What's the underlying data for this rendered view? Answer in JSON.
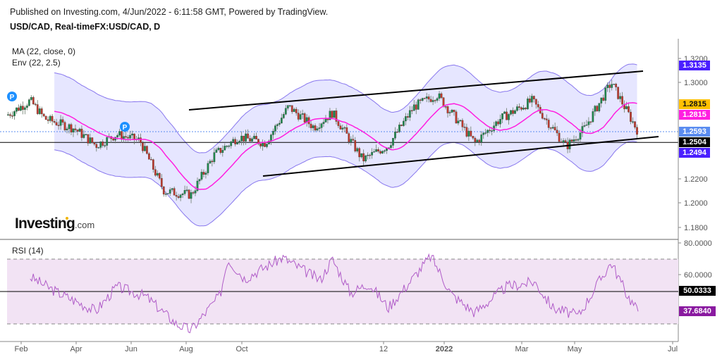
{
  "header": {
    "published": "Published on Investing.com, 4/Jun/2022 - 6:11:58 GMT, Powered by TradingView.",
    "symbol": "USD/CAD, Real-timeFX:USD/CAD, D"
  },
  "legend": {
    "ma": "MA (22, close, 0)",
    "env": "Env (22, 2.5)",
    "rsi": "RSI (14)"
  },
  "logo": {
    "main": "Investing",
    "suffix": ".com"
  },
  "price_axis": {
    "ticks": [
      "1.3200",
      "1.3000",
      "1.2200",
      "1.2000",
      "1.1800"
    ],
    "badges": [
      {
        "label": "1.3135",
        "color": "#4a1fff",
        "text": "#ffffff"
      },
      {
        "label": "1.2815",
        "color": "#ffc000",
        "text": "#111111"
      },
      {
        "label": "1.2815",
        "color": "#ff1fe0",
        "text": "#ffffff"
      },
      {
        "label": "1.2593",
        "color": "#5b8cf0",
        "text": "#ffffff"
      },
      {
        "label": "1.2504",
        "color": "#000000",
        "text": "#ffffff"
      },
      {
        "label": "1.2494",
        "color": "#4a1fff",
        "text": "#ffffff"
      }
    ]
  },
  "rsi_axis": {
    "ticks": [
      "80.0000",
      "60.0000"
    ],
    "badges": [
      {
        "label": "50.0333",
        "color": "#000000",
        "text": "#ffffff"
      },
      {
        "label": "37.6840",
        "color": "#8a1aa0",
        "text": "#ffffff"
      }
    ]
  },
  "time_axis": {
    "labels": [
      "Feb",
      "Apr",
      "Jun",
      "Aug",
      "Oct",
      "12",
      "2022",
      "Mar",
      "May",
      "Jul"
    ]
  },
  "markers": [
    {
      "label": "P"
    },
    {
      "label": "P"
    }
  ],
  "colors": {
    "up": "#1e8a4c",
    "down": "#c0392b",
    "ma": "#ff1fe0",
    "env_line": "#8877ee",
    "env_fill": "#e6e6ff",
    "rsi_line": "#b05cc8",
    "rsi_fill": "#f2e3f4",
    "last_price": "#5b8cf0"
  },
  "chart_data": [
    {
      "type": "candlestick",
      "title": "USD/CAD, Real-timeFX:USD/CAD, D",
      "indicators": [
        "MA (22, close, 0)",
        "Env (22, 2.5)"
      ],
      "x_tick_labels": [
        "Feb",
        "Apr",
        "Jun",
        "Aug",
        "Oct",
        "12",
        "2022",
        "Mar",
        "May",
        "Jul"
      ],
      "y_tick_labels": [
        "1.1800",
        "1.2000",
        "1.2200",
        "1.3000",
        "1.3200"
      ],
      "ylim": [
        1.17,
        1.33
      ],
      "last_close": 1.2593,
      "ma_last": 1.2815,
      "envelope_upper_last": 1.3135,
      "envelope_lower_last": 1.2494,
      "horizontal_line": 1.2504,
      "approx_close_path": [
        {
          "date": "2021-01",
          "close": 1.273
        },
        {
          "date": "2021-01-20",
          "close": 1.285
        },
        {
          "date": "2021-02",
          "close": 1.27
        },
        {
          "date": "2021-02-25",
          "close": 1.262
        },
        {
          "date": "2021-03-15",
          "close": 1.248
        },
        {
          "date": "2021-04-01",
          "close": 1.257
        },
        {
          "date": "2021-04-20",
          "close": 1.252
        },
        {
          "date": "2021-05-10",
          "close": 1.21
        },
        {
          "date": "2021-06-01",
          "close": 1.207
        },
        {
          "date": "2021-06-20",
          "close": 1.24
        },
        {
          "date": "2021-07-10",
          "close": 1.255
        },
        {
          "date": "2021-08-01",
          "close": 1.25
        },
        {
          "date": "2021-08-20",
          "close": 1.28
        },
        {
          "date": "2021-09-10",
          "close": 1.263
        },
        {
          "date": "2021-09-25",
          "close": 1.275
        },
        {
          "date": "2021-10-20",
          "close": 1.236
        },
        {
          "date": "2021-11-10",
          "close": 1.248
        },
        {
          "date": "2021-12-01",
          "close": 1.28
        },
        {
          "date": "2021-12-20",
          "close": 1.29
        },
        {
          "date": "2022-01-20",
          "close": 1.25
        },
        {
          "date": "2022-02-10",
          "close": 1.27
        },
        {
          "date": "2022-03-08",
          "close": 1.285
        },
        {
          "date": "2022-04-05",
          "close": 1.247
        },
        {
          "date": "2022-04-20",
          "close": 1.262
        },
        {
          "date": "2022-05-12",
          "close": 1.3
        },
        {
          "date": "2022-06-03",
          "close": 1.2593
        }
      ],
      "trendlines": [
        {
          "name": "channel-top",
          "from": {
            "date": "2021-07-10",
            "price": 1.279
          },
          "to": {
            "date": "2022-05-30",
            "price": 1.309
          }
        },
        {
          "name": "channel-bottom",
          "from": {
            "date": "2021-08-10",
            "price": 1.223
          },
          "to": {
            "date": "2022-06-15",
            "price": 1.254
          }
        }
      ]
    },
    {
      "type": "line",
      "title": "RSI (14)",
      "ylim": [
        20,
        80
      ],
      "bands": {
        "upper": 70,
        "lower": 30,
        "middle": 50
      },
      "y_tick_labels": [
        "60.0000",
        "80.0000"
      ],
      "last_value": 37.684,
      "midline_value": 50.0333,
      "approx_path": [
        {
          "date": "2021-01-20",
          "value": 59
        },
        {
          "date": "2021-02-10",
          "value": 50
        },
        {
          "date": "2021-03-15",
          "value": 38
        },
        {
          "date": "2021-04-01",
          "value": 53
        },
        {
          "date": "2021-04-25",
          "value": 47
        },
        {
          "date": "2021-05-20",
          "value": 30
        },
        {
          "date": "2021-06-01",
          "value": 26
        },
        {
          "date": "2021-06-25",
          "value": 48
        },
        {
          "date": "2021-07-01",
          "value": 70
        },
        {
          "date": "2021-07-15",
          "value": 58
        },
        {
          "date": "2021-08-15",
          "value": 71
        },
        {
          "date": "2021-09-15",
          "value": 57
        },
        {
          "date": "2021-09-25",
          "value": 70
        },
        {
          "date": "2021-10-10",
          "value": 49
        },
        {
          "date": "2021-10-25",
          "value": 55
        },
        {
          "date": "2021-11-10",
          "value": 40
        },
        {
          "date": "2021-12-01",
          "value": 59
        },
        {
          "date": "2021-12-15",
          "value": 72
        },
        {
          "date": "2022-01-01",
          "value": 48
        },
        {
          "date": "2022-01-20",
          "value": 37
        },
        {
          "date": "2022-02-15",
          "value": 53
        },
        {
          "date": "2022-03-10",
          "value": 56
        },
        {
          "date": "2022-03-25",
          "value": 40
        },
        {
          "date": "2022-04-15",
          "value": 35
        },
        {
          "date": "2022-05-01",
          "value": 55
        },
        {
          "date": "2022-05-12",
          "value": 68
        },
        {
          "date": "2022-05-25",
          "value": 48
        },
        {
          "date": "2022-06-03",
          "value": 37.7
        }
      ]
    }
  ]
}
